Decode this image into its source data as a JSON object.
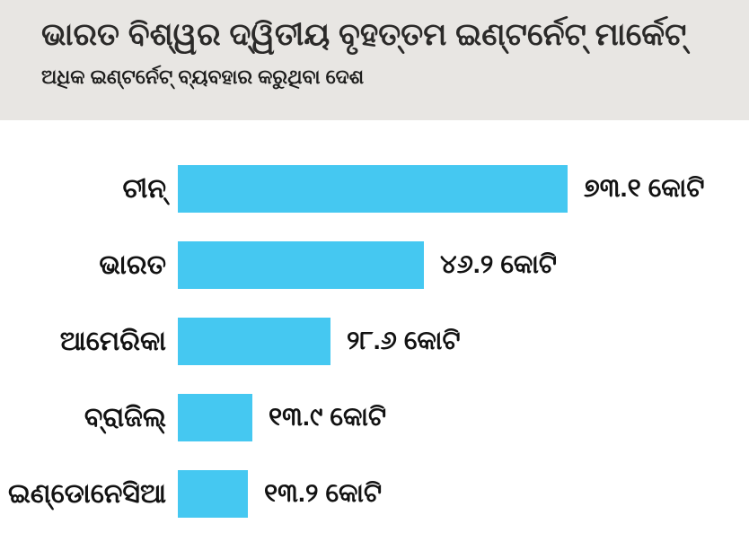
{
  "header": {
    "title": "ଭାରତ ବିଶ୍ୱର  ଦ୍ୱିତୀୟ ବୃହତ୍ତମ ଇଣ୍ଟର୍ନେଟ୍ ମାର୍କେଟ୍",
    "subtitle": "ଅଧିକ ଇଣ୍ଟର୍ନେଟ୍ ବ୍ୟବହାର କରୁଥିବା ଦେଶ"
  },
  "colors": {
    "header_background": "#e8e6e3",
    "bar": "#45c8f1",
    "text": "#121212",
    "page_background": "#ffffff"
  },
  "chart_data": {
    "type": "bar",
    "orientation": "horizontal",
    "title": "ଭାରତ ବିଶ୍ୱର  ଦ୍ୱିତୀୟ ବୃହତ୍ତମ ଇଣ୍ଟର୍ନେଟ୍ ମାର୍କେଟ୍",
    "subtitle": "ଅଧିକ ଇଣ୍ଟର୍ନେଟ୍ ବ୍ୟବହାର କରୁଥିବା ଦେଶ",
    "categories": [
      "ଚୀନ୍",
      "ଭାରତ",
      "ଆମେରିକା",
      "ବ୍ରାଜିଲ୍",
      "ଇଣ୍ଡୋନେସିଆ"
    ],
    "values": [
      73.1,
      46.2,
      28.6,
      13.9,
      13.2
    ],
    "value_labels": [
      "୭୩.୧ କୋଟି",
      "୪୬.୨ କୋଟି",
      "୨୮.୬ କୋଟି",
      "୧୩.୯ କୋଟି",
      "୧୩.୨ କୋଟି"
    ],
    "unit": "କୋଟି",
    "xlim": [
      0,
      80
    ],
    "grid": false,
    "legend": false,
    "bar_color": "#45c8f1"
  }
}
